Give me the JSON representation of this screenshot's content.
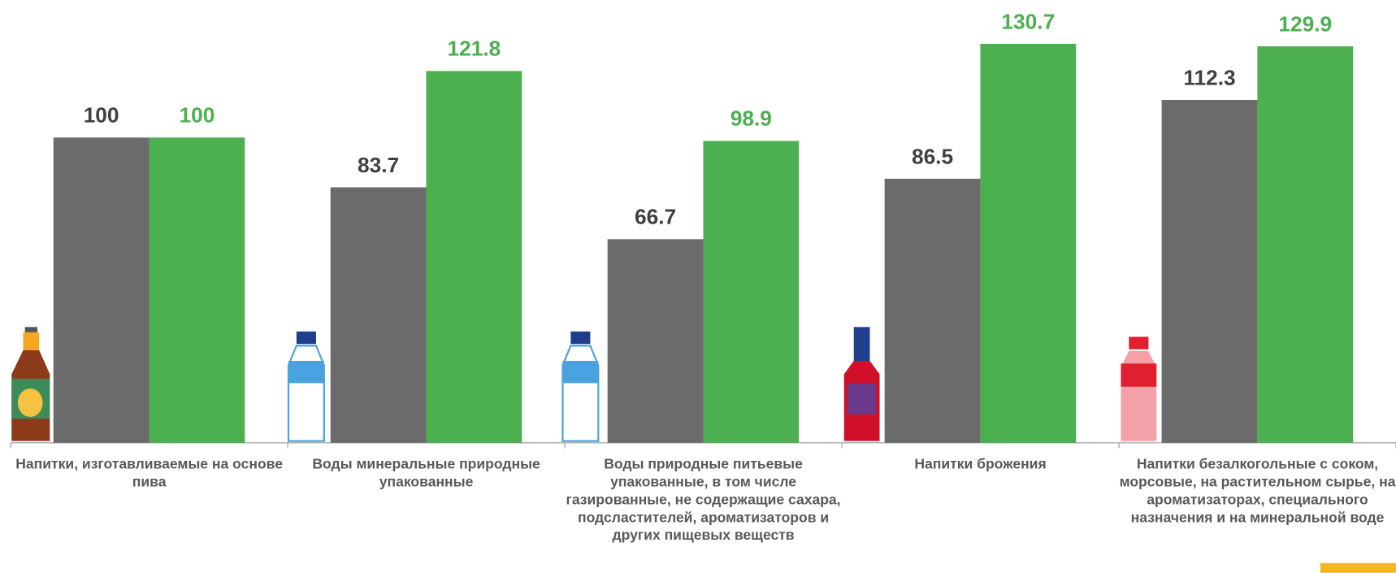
{
  "chart_data": {
    "type": "bar",
    "categories": [
      "Напитки, изготавливаемые на основе пива",
      "Воды минеральные природные упакованные",
      "Воды природные питьевые упакованные, в том числе газированные, не содержащие сахара, подсластителей, ароматизаторов и других пищевых веществ",
      "Напитки брожения",
      "Напитки безалкогольные с соком, морсовые, на растительном сырье, на ароматизаторах, специального назначения и на минеральной воде"
    ],
    "series": [
      {
        "color": "#6b6b6b",
        "label_color": "#404040",
        "values": [
          100,
          83.7,
          66.7,
          86.5,
          112.3
        ]
      },
      {
        "color": "#4caf50",
        "label_color": "#4caf50",
        "values": [
          100,
          121.8,
          98.9,
          130.7,
          129.9
        ]
      }
    ],
    "ylim": [
      0,
      145
    ]
  }
}
